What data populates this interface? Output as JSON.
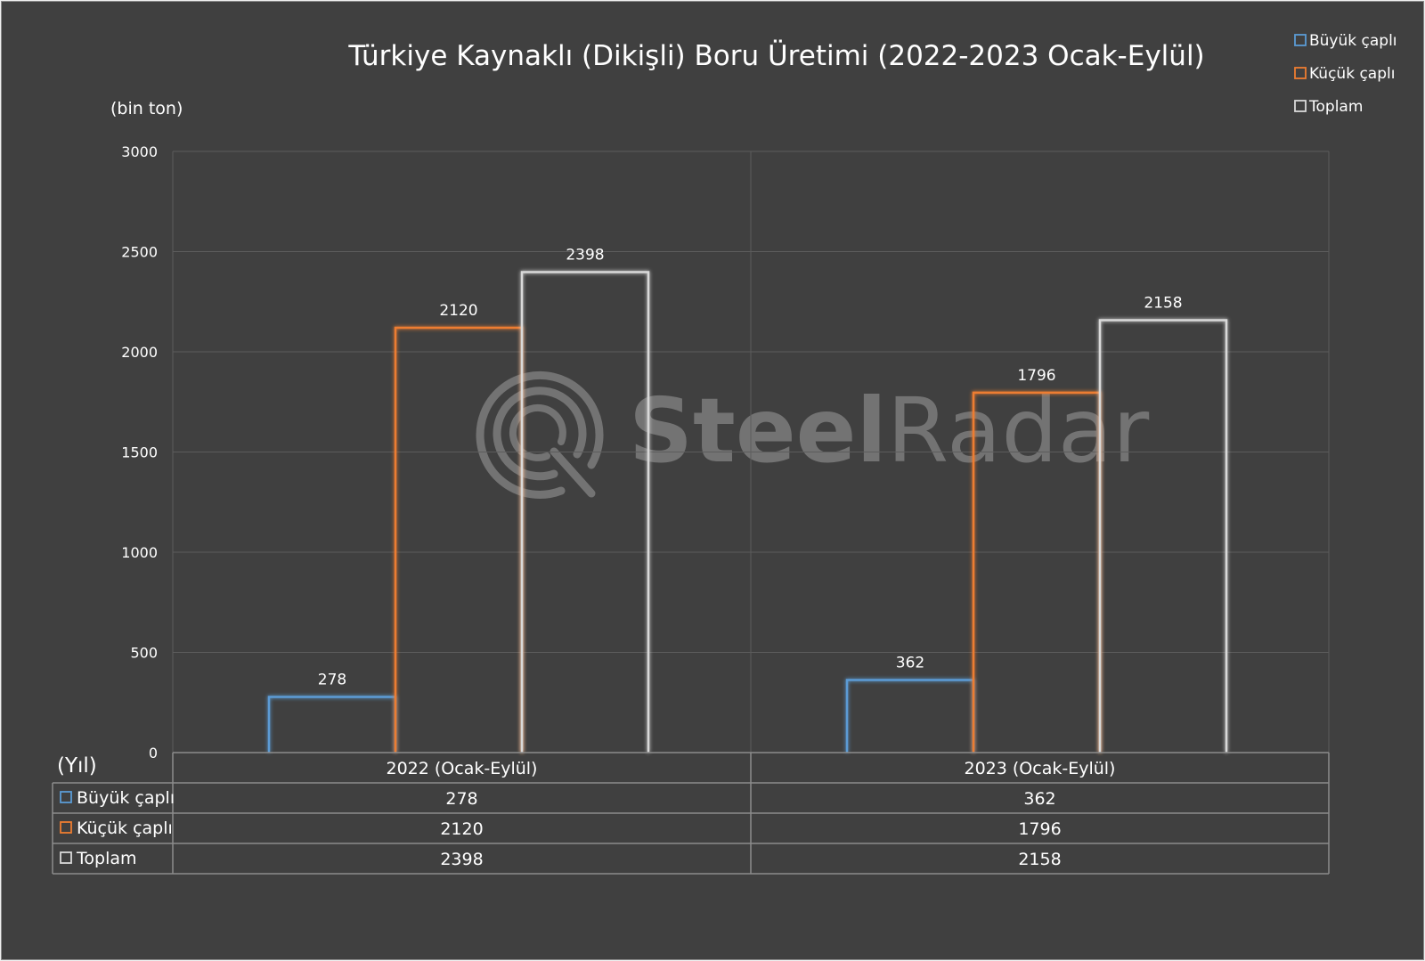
{
  "chart_data": {
    "type": "bar",
    "title": "Türkiye Kaynaklı (Dikişli) Boru Üretimi (2022-2023 Ocak-Eylül)",
    "ylabel": "(bin ton)",
    "table_header": "(Yıl)",
    "categories": [
      "2022 (Ocak-Eylül)",
      "2023 (Ocak-Eylül)"
    ],
    "ylim": [
      0,
      3000
    ],
    "yticks": [
      0,
      500,
      1000,
      1500,
      2000,
      2500,
      3000
    ],
    "grid": true,
    "legend_position": "top-right",
    "series": [
      {
        "name": "Büyük çaplı",
        "values": [
          278,
          362
        ],
        "color": "#5b9bd5"
      },
      {
        "name": "Küçük çaplı",
        "values": [
          2120,
          1796
        ],
        "color": "#ed7d31"
      },
      {
        "name": "Toplam",
        "values": [
          2398,
          2158
        ],
        "color": "#d9d9d9"
      }
    ]
  },
  "watermark": {
    "brand_first": "Steel",
    "brand_second": "Radar"
  }
}
